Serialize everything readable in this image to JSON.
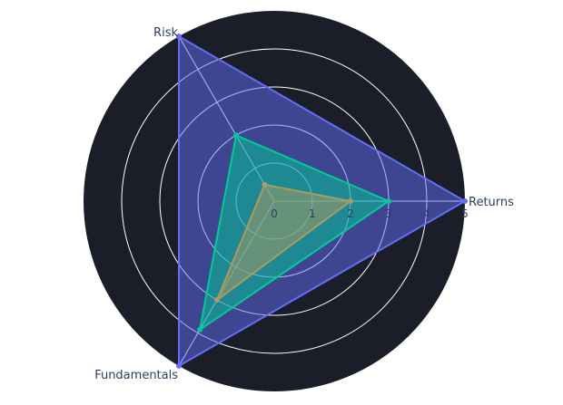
{
  "chart_data": {
    "type": "radar",
    "axes": [
      "Returns",
      "Risk",
      "Fundamentals"
    ],
    "radial_range": [
      0,
      5
    ],
    "radial_ticks": [
      "0",
      "1",
      "2",
      "3",
      "4",
      "5"
    ],
    "grid": true,
    "legend": "none",
    "colors": {
      "polar_background": "#1b1e28",
      "grid": "#ffffff",
      "axis_text": "#2a3f5f"
    },
    "series": [
      {
        "values": [
          5,
          5,
          5
        ],
        "color": "#636efa"
      },
      {
        "values": [
          3,
          2,
          3.9
        ],
        "color": "#00cc96"
      },
      {
        "values": [
          2,
          0.5,
          3
        ],
        "color": "#ab9b5e"
      }
    ]
  }
}
